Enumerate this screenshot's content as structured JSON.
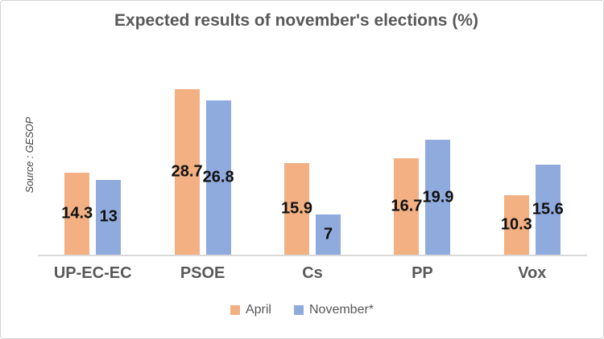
{
  "source_label": "Source : GESOP",
  "colors": {
    "april": "#F2B083",
    "november": "#8FAADC",
    "title_text": "#595959",
    "axis_line": "#d9d9d9",
    "data_label_text": "#111111"
  },
  "chart_data": {
    "type": "bar",
    "title": "Expected results of november's elections (%)",
    "categories": [
      "UP-EC-EC",
      "PSOE",
      "Cs",
      "PP",
      "Vox"
    ],
    "series": [
      {
        "name": "April",
        "color": "#F2B083",
        "values": [
          14.3,
          28.7,
          15.9,
          16.7,
          10.3
        ]
      },
      {
        "name": "November*",
        "color": "#8FAADC",
        "values": [
          13,
          26.8,
          7,
          19.9,
          15.6
        ]
      }
    ],
    "xlabel": "",
    "ylabel": "",
    "ylim": [
      0,
      30
    ],
    "grid": false,
    "legend_position": "bottom",
    "data_labels": "inside-center",
    "source": "Source : GESOP"
  }
}
